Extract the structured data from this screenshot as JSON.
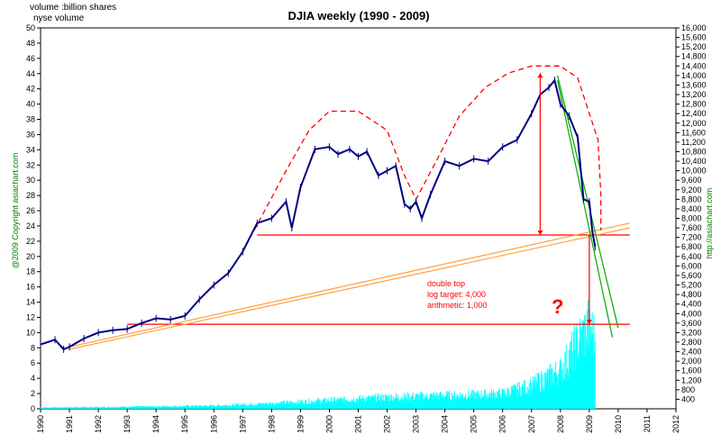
{
  "chart_data": {
    "type": "line",
    "title": "DJIA weekly (1990 - 2009)",
    "left_axis_label_1": "volume :billion shares",
    "left_axis_label_2": "nyse volume",
    "copyright_label": "@2009 Copyright asiachart.com",
    "url_label": "http://asiachart.com",
    "annotation_lines": [
      "double top",
      "log target: 4,000",
      "arithmetic: 1,000"
    ],
    "question_mark": "?",
    "x_ticks": [
      "1990",
      "1991",
      "1992",
      "1993",
      "1994",
      "1995",
      "1996",
      "1997",
      "1998",
      "1999",
      "2000",
      "2001",
      "2002",
      "2003",
      "2004",
      "2005",
      "2006",
      "2007",
      "2008",
      "2009",
      "2010",
      "2011",
      "2012"
    ],
    "xlim": [
      1990,
      2012
    ],
    "left_ticks": [
      "0",
      "2",
      "4",
      "6",
      "8",
      "10",
      "12",
      "14",
      "16",
      "18",
      "20",
      "22",
      "24",
      "26",
      "28",
      "30",
      "32",
      "34",
      "36",
      "38",
      "40",
      "42",
      "44",
      "46",
      "48",
      "50"
    ],
    "left_ylim": [
      0,
      50
    ],
    "right_ticks": [
      "400",
      "800",
      "1,200",
      "1,600",
      "2,000",
      "2,400",
      "2,800",
      "3,200",
      "3,600",
      "4,000",
      "4,400",
      "4,800",
      "5,200",
      "5,600",
      "6,000",
      "6,400",
      "6,800",
      "7,200",
      "7,600",
      "8,000",
      "8,400",
      "8,800",
      "9,200",
      "9,600",
      "10,000",
      "10,400",
      "10,800",
      "11,200",
      "11,600",
      "12,000",
      "12,400",
      "12,800",
      "13,200",
      "13,600",
      "14,000",
      "14,400",
      "14,800",
      "15,200",
      "15,600",
      "16,000"
    ],
    "right_ylim": [
      0,
      16000
    ],
    "grid": false,
    "djia_series": {
      "name": "DJIA weekly",
      "color": "#000080",
      "x": [
        1990.0,
        1990.5,
        1990.8,
        1991.0,
        1991.5,
        1992.0,
        1992.5,
        1993.0,
        1993.5,
        1994.0,
        1994.5,
        1995.0,
        1995.5,
        1996.0,
        1996.5,
        1997.0,
        1997.5,
        1998.0,
        1998.5,
        1998.7,
        1999.0,
        1999.5,
        2000.0,
        2000.3,
        2000.7,
        2001.0,
        2001.3,
        2001.7,
        2002.0,
        2002.3,
        2002.6,
        2002.8,
        2003.0,
        2003.2,
        2003.5,
        2004.0,
        2004.5,
        2005.0,
        2005.5,
        2006.0,
        2006.5,
        2007.0,
        2007.3,
        2007.6,
        2007.8,
        2008.0,
        2008.3,
        2008.6,
        2008.8,
        2009.0,
        2009.1,
        2009.2
      ],
      "values": [
        2700,
        2900,
        2500,
        2600,
        2950,
        3200,
        3300,
        3350,
        3600,
        3800,
        3750,
        3900,
        4600,
        5200,
        5700,
        6600,
        7800,
        8000,
        8700,
        7600,
        9300,
        10900,
        11000,
        10700,
        10900,
        10600,
        10800,
        9800,
        10000,
        10200,
        8600,
        8400,
        8700,
        8000,
        9000,
        10400,
        10200,
        10500,
        10400,
        11000,
        11300,
        12400,
        13200,
        13500,
        13800,
        12800,
        12300,
        11400,
        8800,
        8700,
        7500,
        6800
      ]
    },
    "volume_series": {
      "name": "nyse volume",
      "color": "#00ffff",
      "x": [
        1990,
        1991,
        1992,
        1993,
        1994,
        1995,
        1996,
        1997,
        1998,
        1999,
        2000,
        2001,
        2002,
        2003,
        2004,
        2005,
        2006,
        2007,
        2008,
        2008.5,
        2009,
        2009.2
      ],
      "values": [
        0.15,
        0.18,
        0.2,
        0.25,
        0.3,
        0.35,
        0.4,
        0.55,
        0.7,
        0.9,
        1.1,
        1.3,
        1.5,
        1.6,
        1.7,
        1.8,
        2.0,
        3.0,
        5.0,
        8.0,
        11.0,
        9.0
      ]
    },
    "support_lines": [
      {
        "label": "double top neckline",
        "color": "#ff0000",
        "x": [
          1997.5,
          2010.4
        ],
        "y": [
          7300,
          7300
        ]
      },
      {
        "label": "target line",
        "color": "#ff0000",
        "x": [
          1993.0,
          2010.4
        ],
        "y": [
          3550,
          3550
        ]
      },
      {
        "label": "trendline upper",
        "color": "#ffa040",
        "x": [
          1991.0,
          2010.4
        ],
        "y": [
          2600,
          7800
        ]
      },
      {
        "label": "trendline lower",
        "color": "#ffa040",
        "x": [
          1991.0,
          2010.4
        ],
        "y": [
          2500,
          7600
        ]
      },
      {
        "label": "downtrend outer",
        "color": "#00aa00",
        "x": [
          2007.9,
          2010.0
        ],
        "y": [
          14000,
          3400
        ]
      },
      {
        "label": "downtrend inner",
        "color": "#00aa00",
        "x": [
          2007.9,
          2009.8
        ],
        "y": [
          13800,
          3000
        ]
      }
    ],
    "arrows": [
      {
        "label": "double top height",
        "color": "#ff0000",
        "x": [
          2007.3,
          2007.3
        ],
        "y": [
          14100,
          7300
        ]
      },
      {
        "label": "projected target",
        "color": "#ff0000",
        "x": [
          2009.0,
          2009.0
        ],
        "y": [
          7300,
          3550
        ]
      }
    ],
    "envelope": {
      "color": "#ff0000",
      "x": [
        1997.4,
        1998.5,
        1999.3,
        2000.0,
        2001.0,
        2002.0,
        2002.6,
        2003.0,
        2003.7,
        2004.5,
        2005.4,
        2006.2,
        2007.0,
        2008.0,
        2008.6,
        2009.3,
        2009.4,
        2009.4
      ],
      "y": [
        7500,
        10000,
        11700,
        12500,
        12500,
        11700,
        9800,
        8800,
        10400,
        12300,
        13500,
        14100,
        14400,
        14400,
        13900,
        11300,
        9000,
        7500
      ]
    }
  }
}
